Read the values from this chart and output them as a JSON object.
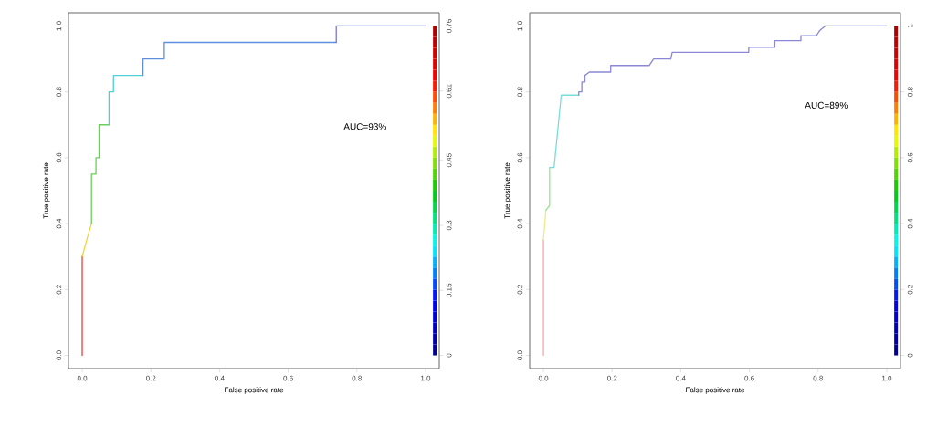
{
  "chart_data": [
    {
      "type": "line",
      "xlabel": "False positive rate",
      "ylabel": "True positive rate",
      "annotations": [
        "AUC=93%"
      ],
      "xlim": [
        -0.04,
        1.04
      ],
      "ylim": [
        -0.04,
        1.04
      ],
      "y2lim": [
        -0.0304,
        0.7904
      ],
      "xticks": [
        {
          "value": 0,
          "label": "0.0"
        },
        {
          "value": 0.2,
          "label": "0.2"
        },
        {
          "value": 0.4,
          "label": "0.4"
        },
        {
          "value": 0.6,
          "label": "0.6"
        },
        {
          "value": 0.8,
          "label": "0.8"
        },
        {
          "value": 1,
          "label": "1.0"
        }
      ],
      "yticks": [
        {
          "value": 0,
          "label": "0.0"
        },
        {
          "value": 0.2,
          "label": "0.2"
        },
        {
          "value": 0.4,
          "label": "0.4"
        },
        {
          "value": 0.6,
          "label": "0.6"
        },
        {
          "value": 0.8,
          "label": "0.8"
        },
        {
          "value": 1,
          "label": "1.0"
        }
      ],
      "y2ticks": [
        0,
        0.15,
        0.3,
        0.45,
        0.61,
        0.76
      ],
      "series": [
        {
          "color": "#e8403a",
          "x": [
            0,
            0
          ],
          "values": [
            0,
            0.3
          ]
        },
        {
          "color": "#f2d23c",
          "x": [
            0,
            0.013,
            0.027
          ],
          "values": [
            0.3,
            0.35,
            0.4
          ]
        },
        {
          "color": "#6ccf5a",
          "x": [
            0.027,
            0.027,
            0.04,
            0.04,
            0.049,
            0.049,
            0.078
          ],
          "values": [
            0.4,
            0.55,
            0.55,
            0.6,
            0.6,
            0.7,
            0.7
          ]
        },
        {
          "color": "#4fd0d6",
          "x": [
            0.078,
            0.078,
            0.091,
            0.091,
            0.177
          ],
          "values": [
            0.7,
            0.8,
            0.8,
            0.85,
            0.85
          ]
        },
        {
          "color": "#5f8fdc",
          "x": [
            0.177,
            0.177,
            0.239,
            0.239,
            0.74
          ],
          "values": [
            0.85,
            0.9,
            0.9,
            0.95,
            0.95
          ]
        },
        {
          "color": "#7a76d8",
          "x": [
            0.74,
            0.74,
            1
          ],
          "values": [
            0.95,
            1,
            1
          ]
        }
      ]
    },
    {
      "type": "line",
      "xlabel": "False positive rate",
      "ylabel": "True positive rate",
      "annotations": [
        "AUC=89%"
      ],
      "xlim": [
        -0.04,
        1.04
      ],
      "ylim": [
        -0.04,
        1.04
      ],
      "y2lim": [
        -0.04,
        1.04
      ],
      "xticks": [
        {
          "value": 0,
          "label": "0.0"
        },
        {
          "value": 0.2,
          "label": "0.2"
        },
        {
          "value": 0.4,
          "label": "0.4"
        },
        {
          "value": 0.6,
          "label": "0.6"
        },
        {
          "value": 0.8,
          "label": "0.8"
        },
        {
          "value": 1,
          "label": "1.0"
        }
      ],
      "yticks": [
        {
          "value": 0,
          "label": "0.0"
        },
        {
          "value": 0.2,
          "label": "0.2"
        },
        {
          "value": 0.4,
          "label": "0.4"
        },
        {
          "value": 0.6,
          "label": "0.6"
        },
        {
          "value": 0.8,
          "label": "0.8"
        },
        {
          "value": 1,
          "label": "1.0"
        }
      ],
      "y2ticks": [
        0,
        0.2,
        0.4,
        0.6,
        0.8,
        1
      ],
      "series": [
        {
          "color": "#f0a8a8",
          "x": [
            0,
            0
          ],
          "values": [
            0,
            0.35
          ]
        },
        {
          "color": "#eeea8a",
          "x": [
            0,
            0.007
          ],
          "values": [
            0.35,
            0.44
          ]
        },
        {
          "color": "#96e68e",
          "x": [
            0.007,
            0.018,
            0.018
          ],
          "values": [
            0.44,
            0.455,
            0.57
          ]
        },
        {
          "color": "#7adcdc",
          "x": [
            0.018,
            0.031,
            0.052,
            0.103
          ],
          "values": [
            0.57,
            0.57,
            0.79,
            0.79
          ]
        },
        {
          "color": "#8a88d6",
          "x": [
            0.103,
            0.103,
            0.112,
            0.112,
            0.121,
            0.121,
            0.134,
            0.196,
            0.196,
            0.308,
            0.321,
            0.371,
            0.375,
            0.598,
            0.598,
            0.674,
            0.674,
            0.75,
            0.75,
            0.795,
            0.804,
            0.821,
            1
          ],
          "values": [
            0.79,
            0.8,
            0.8,
            0.83,
            0.83,
            0.85,
            0.86,
            0.86,
            0.88,
            0.88,
            0.9,
            0.9,
            0.92,
            0.92,
            0.935,
            0.935,
            0.955,
            0.955,
            0.97,
            0.97,
            0.985,
            1,
            1
          ]
        }
      ]
    }
  ]
}
